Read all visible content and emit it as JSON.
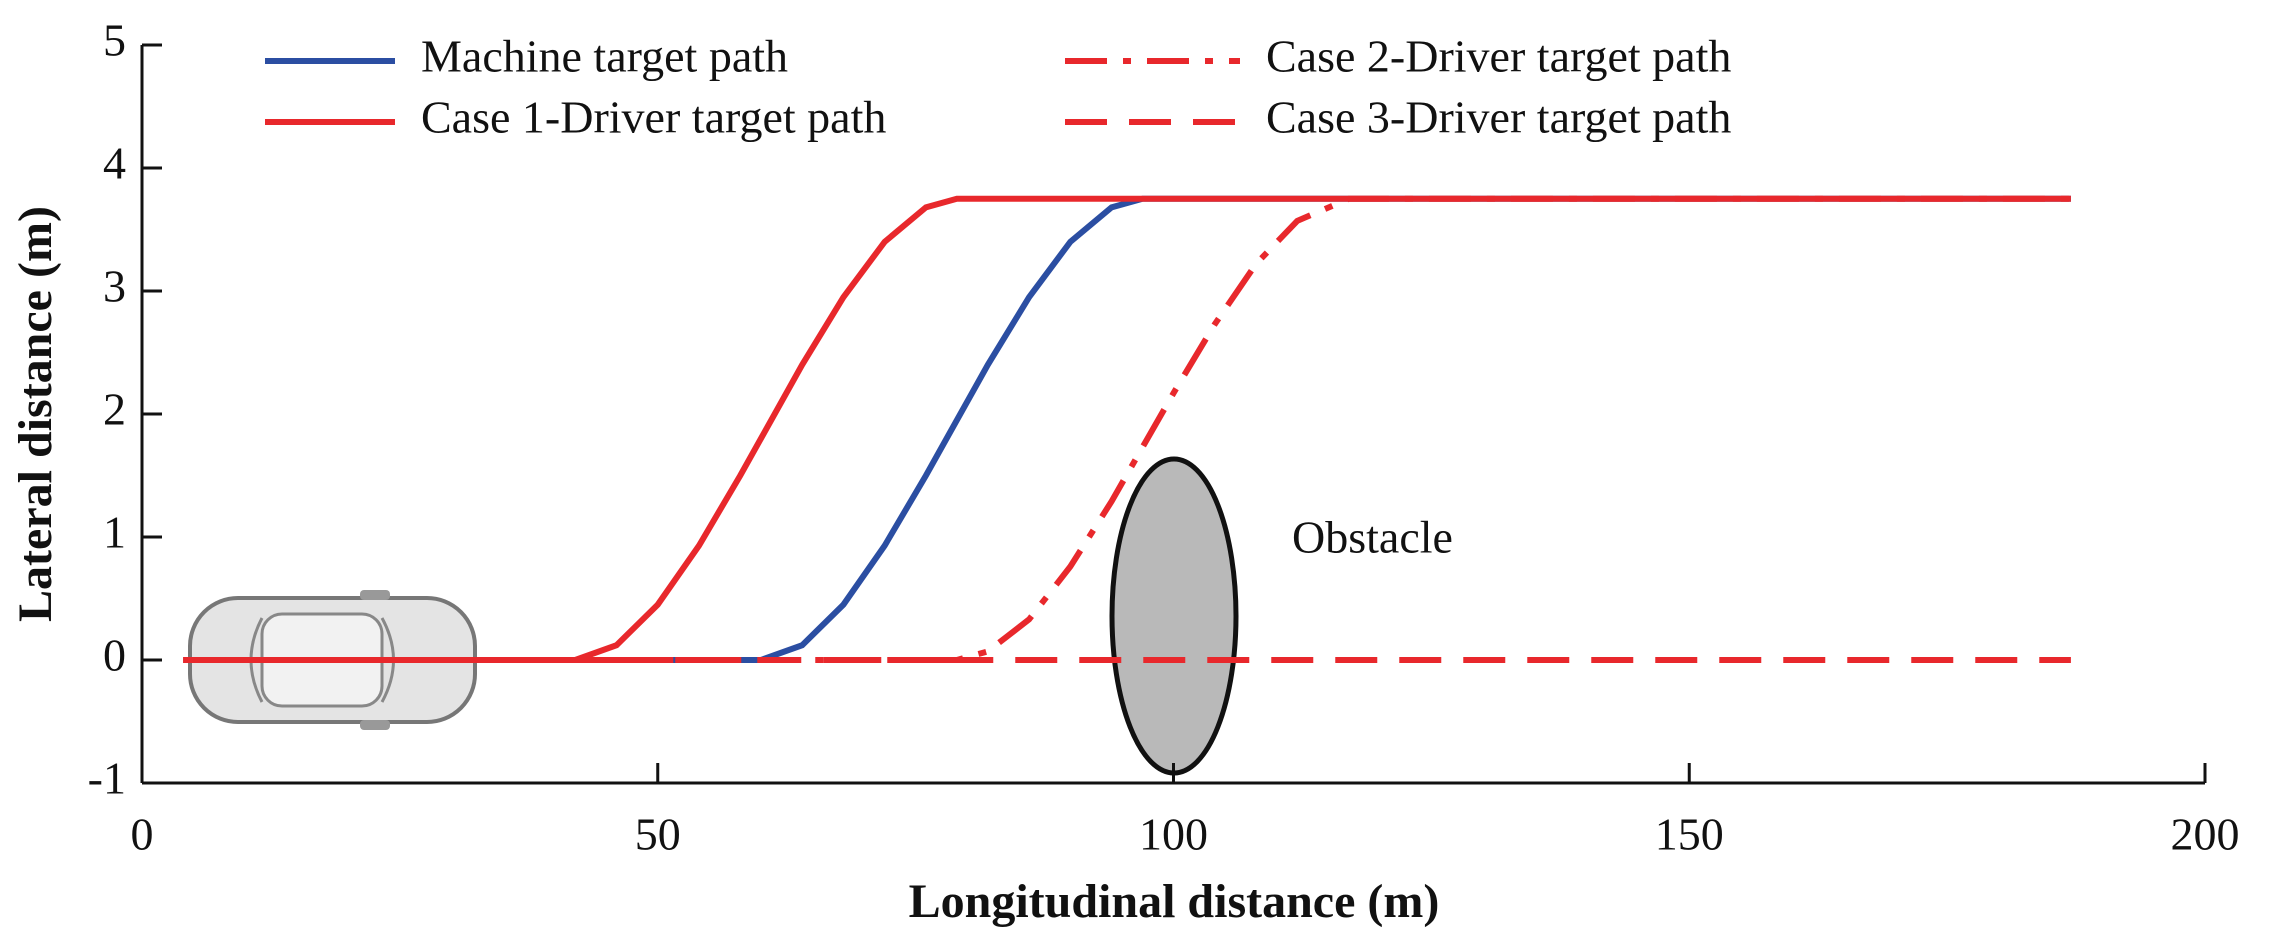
{
  "chart_data": {
    "type": "line",
    "x_label": "Longitudinal distance (m)",
    "y_label": "Lateral distance (m)",
    "annotation": "Obstacle",
    "x": [
      4,
      42,
      46,
      50,
      54,
      58,
      60,
      64,
      68,
      72,
      76,
      79,
      82,
      86,
      90,
      94,
      97,
      100,
      104,
      108,
      112,
      117,
      187
    ],
    "series": [
      {
        "name": "Machine target path",
        "color": "#2b4ea2",
        "style": "solid",
        "values": [
          0,
          0,
          0,
          0,
          0,
          0,
          0,
          0.12,
          0.45,
          0.93,
          1.5,
          1.95,
          2.4,
          2.95,
          3.4,
          3.68,
          3.75,
          3.75,
          3.75,
          3.75,
          3.75,
          3.75,
          3.75
        ]
      },
      {
        "name": "Case 1-Driver target path",
        "color": "#e8282c",
        "style": "solid",
        "values": [
          0,
          0,
          0.12,
          0.45,
          0.93,
          1.5,
          1.8,
          2.4,
          2.95,
          3.4,
          3.68,
          3.75,
          3.75,
          3.75,
          3.75,
          3.75,
          3.75,
          3.75,
          3.75,
          3.75,
          3.75,
          3.75,
          3.75
        ]
      },
      {
        "name": "Case 2-Driver target path",
        "color": "#e8282c",
        "style": "dashdot",
        "values": [
          0,
          0,
          0,
          0,
          0,
          0,
          0,
          0,
          0,
          0,
          0,
          0,
          0.07,
          0.33,
          0.76,
          1.29,
          1.73,
          2.17,
          2.73,
          3.22,
          3.57,
          3.75,
          3.75
        ]
      },
      {
        "name": "Case 3-Driver target path",
        "color": "#e8282c",
        "style": "dashed",
        "values": [
          0,
          0,
          0,
          0,
          0,
          0,
          0,
          0,
          0,
          0,
          0,
          0,
          0,
          0,
          0,
          0,
          0,
          0,
          0,
          0,
          0,
          0,
          0
        ]
      }
    ],
    "xlim": [
      0,
      200
    ],
    "xticks": [
      0,
      50,
      100,
      150,
      200
    ],
    "ylim": [
      -1,
      5
    ],
    "yticks": [
      -1,
      0,
      1,
      2,
      3,
      4,
      5
    ],
    "grid": false
  }
}
